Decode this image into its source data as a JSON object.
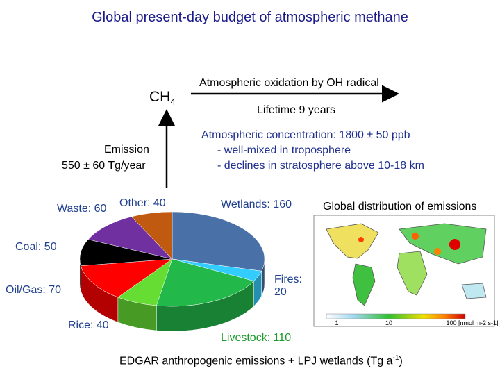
{
  "title": "Global present-day budget of atmospheric methane",
  "ch4": {
    "base": "CH",
    "sub": "4"
  },
  "emission": [
    "Emission",
    "550 ± 60 Tg/year"
  ],
  "oxidation": "Atmospheric oxidation by OH radical",
  "lifetime": "Lifetime 9 years",
  "concentration": [
    "Atmospheric concentration: 1800 ± 50 ppb",
    "- well-mixed in troposphere",
    "- declines in stratosphere above 10-18 km"
  ],
  "map_title": "Global distribution of emissions",
  "map_scale": {
    "ticks": [
      "1",
      "10",
      "100"
    ],
    "unit": "[nmol m-2 s-1]"
  },
  "caption": {
    "main": "EDGAR anthropogenic emissions + LPJ wetlands (Tg a",
    "sup": "-1",
    "end": ")"
  },
  "chart_data": {
    "type": "pie",
    "values": [
      160,
      20,
      110,
      40,
      70,
      50,
      60,
      40
    ],
    "value_labels": [
      "Wetlands: 160",
      "Fires: 20",
      "Livestock: 110",
      "Rice: 40",
      "Oil/Gas: 70",
      "Coal: 50",
      "Waste: 60",
      "Other: 40"
    ],
    "colors": [
      "#4a70a8",
      "#33ccff",
      "#22b84a",
      "#66dd33",
      "#ff0000",
      "#000000",
      "#7030a0",
      "#c05a10"
    ]
  }
}
